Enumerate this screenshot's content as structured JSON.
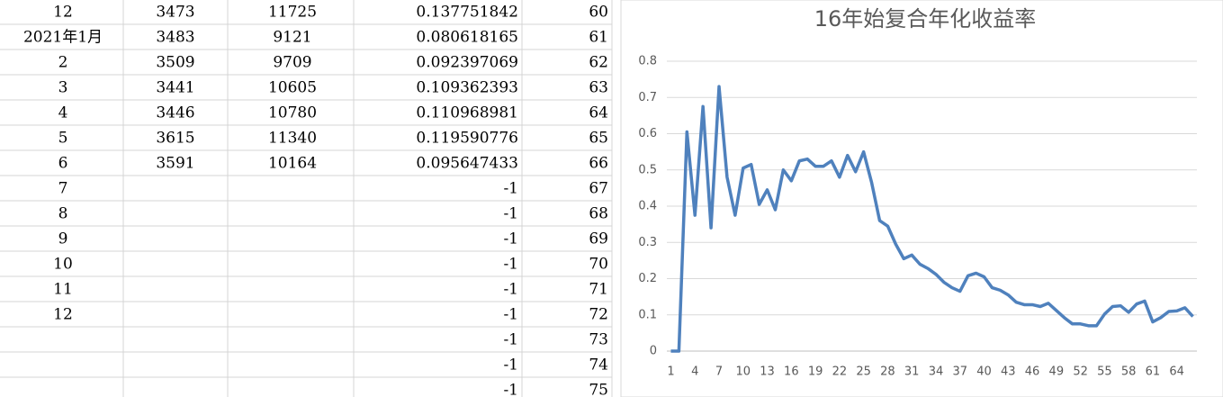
{
  "table": {
    "rows": [
      [
        "12",
        "3473",
        "11725",
        "0.137751842",
        "60"
      ],
      [
        "2021年1月",
        "3483",
        "9121",
        "0.080618165",
        "61"
      ],
      [
        "2",
        "3509",
        "9709",
        "0.092397069",
        "62"
      ],
      [
        "3",
        "3441",
        "10605",
        "0.109362393",
        "63"
      ],
      [
        "4",
        "3446",
        "10780",
        "0.110968981",
        "64"
      ],
      [
        "5",
        "3615",
        "11340",
        "0.119590776",
        "65"
      ],
      [
        "6",
        "3591",
        "10164",
        "0.095647433",
        "66"
      ],
      [
        "7",
        null,
        null,
        "-1",
        "67"
      ],
      [
        "8",
        null,
        null,
        "-1",
        "68"
      ],
      [
        "9",
        null,
        null,
        "-1",
        "69"
      ],
      [
        "10",
        null,
        null,
        "-1",
        "70"
      ],
      [
        "11",
        null,
        null,
        "-1",
        "71"
      ],
      [
        "12",
        null,
        null,
        "-1",
        "72"
      ],
      [
        null,
        null,
        null,
        "-1",
        "73"
      ],
      [
        null,
        null,
        null,
        "-1",
        "74"
      ],
      [
        null,
        null,
        null,
        "-1",
        "75"
      ]
    ]
  },
  "chart_data": {
    "type": "line",
    "title": "16年始复合年化收益率",
    "categories": [
      "1",
      null,
      null,
      "4",
      null,
      null,
      "7",
      null,
      null,
      "10",
      null,
      null,
      "13",
      null,
      null,
      "16",
      null,
      null,
      "19",
      null,
      null,
      "22",
      null,
      null,
      "25",
      null,
      null,
      "28",
      null,
      null,
      "31",
      null,
      null,
      "34",
      null,
      null,
      "37",
      null,
      null,
      "40",
      null,
      null,
      "43",
      null,
      null,
      "46",
      null,
      null,
      "49",
      null,
      null,
      "52",
      null,
      null,
      "55",
      null,
      null,
      "58",
      null,
      null,
      "61",
      null,
      null,
      "64",
      null,
      null
    ],
    "values": [
      0,
      0,
      0.605,
      0.375,
      0.675,
      0.34,
      0.73,
      0.48,
      0.375,
      0.505,
      0.515,
      0.405,
      0.445,
      0.39,
      0.5,
      0.47,
      0.525,
      0.53,
      0.51,
      0.51,
      0.525,
      0.48,
      0.54,
      0.495,
      0.55,
      0.465,
      0.36,
      0.345,
      0.295,
      0.255,
      0.265,
      0.24,
      0.228,
      0.212,
      0.19,
      0.175,
      0.165,
      0.208,
      0.215,
      0.205,
      0.175,
      0.168,
      0.155,
      0.135,
      0.128,
      0.128,
      0.123,
      0.132,
      0.112,
      0.092,
      0.075,
      0.075,
      0.07,
      0.07,
      0.102,
      0.123,
      0.125,
      0.107,
      0.13,
      0.138,
      0.0806,
      0.0924,
      0.1094,
      0.111,
      0.1196,
      0.0956
    ],
    "color": "#4f81bd",
    "ylim": [
      0,
      0.8
    ],
    "yticks": [
      0,
      0.1,
      0.2,
      0.3,
      0.4,
      0.5,
      0.6,
      0.7,
      0.8
    ],
    "grid": true
  }
}
